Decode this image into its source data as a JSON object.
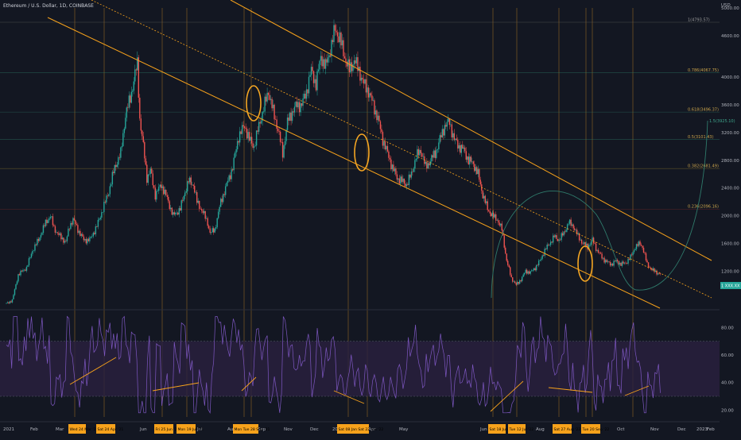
{
  "header": {
    "title": "Ethereum / U.S. Dollar, 1D, COINBASE",
    "currency": "USD"
  },
  "colors": {
    "bg": "#131722",
    "up": "#26a69a",
    "down": "#ef5350",
    "channel": "#f7a21b",
    "rsi": "#7e57c2",
    "rsi_band": "#2a2140",
    "fib": "#4f5b2f",
    "marker": "#f5a623",
    "tag_bg": "#f7a21b",
    "arc": "#2f7a6b",
    "price_tag": "#26a69a"
  },
  "chart_data": {
    "type": "candlestick",
    "x_labels": [
      "2021",
      "Feb",
      "Mar",
      "Jun",
      "Jul",
      "Aug",
      "Sep",
      "Nov",
      "Dec",
      "2022",
      "Apr",
      "May",
      "Jun",
      "Aug",
      "Sep",
      "Oct",
      "Nov",
      "Dec",
      "2023",
      "Feb"
    ],
    "y_axis": {
      "unit": "USD",
      "tick_labels": [
        "5000.00",
        "4600.00",
        "4000.00",
        "3600.00",
        "3200.00",
        "2800.00",
        "2400.00",
        "2000.00",
        "1600.00",
        "1200.00",
        "1000.00"
      ],
      "ylim": [
        700,
        5000
      ]
    },
    "price_path": [
      [
        0,
        730
      ],
      [
        5,
        780
      ],
      [
        10,
        1150
      ],
      [
        17,
        1250
      ],
      [
        22,
        1500
      ],
      [
        27,
        1650
      ],
      [
        30,
        1780
      ],
      [
        33,
        1900
      ],
      [
        37,
        2000
      ],
      [
        40,
        1820
      ],
      [
        45,
        1700
      ],
      [
        50,
        1620
      ],
      [
        53,
        1850
      ],
      [
        56,
        1950
      ],
      [
        60,
        1800
      ],
      [
        65,
        1650
      ],
      [
        70,
        1650
      ],
      [
        76,
        1850
      ],
      [
        80,
        2050
      ],
      [
        86,
        2350
      ],
      [
        91,
        2700
      ],
      [
        96,
        2900
      ],
      [
        100,
        3450
      ],
      [
        104,
        3700
      ],
      [
        107,
        3950
      ],
      [
        110,
        4200
      ],
      [
        112,
        3400
      ],
      [
        115,
        3000
      ],
      [
        118,
        2550
      ],
      [
        121,
        2650
      ],
      [
        125,
        2300
      ],
      [
        130,
        2450
      ],
      [
        135,
        2250
      ],
      [
        140,
        2000
      ],
      [
        146,
        2100
      ],
      [
        150,
        2350
      ],
      [
        153,
        2500
      ],
      [
        157,
        2450
      ],
      [
        160,
        2200
      ],
      [
        165,
        2050
      ],
      [
        169,
        1900
      ],
      [
        171,
        1750
      ],
      [
        175,
        1800
      ],
      [
        180,
        2200
      ],
      [
        185,
        2450
      ],
      [
        190,
        2700
      ],
      [
        195,
        3150
      ],
      [
        200,
        3300
      ],
      [
        204,
        3100
      ],
      [
        208,
        3000
      ],
      [
        212,
        3300
      ],
      [
        216,
        3550
      ],
      [
        220,
        3800
      ],
      [
        224,
        3500
      ],
      [
        228,
        3250
      ],
      [
        232,
        2900
      ],
      [
        236,
        3350
      ],
      [
        240,
        3500
      ],
      [
        244,
        3600
      ],
      [
        248,
        3600
      ],
      [
        252,
        3800
      ],
      [
        256,
        4100
      ],
      [
        260,
        3900
      ],
      [
        264,
        4300
      ],
      [
        268,
        4150
      ],
      [
        272,
        4400
      ],
      [
        276,
        4700
      ],
      [
        280,
        4550
      ],
      [
        284,
        4300
      ],
      [
        288,
        4100
      ],
      [
        292,
        4250
      ],
      [
        296,
        4100
      ],
      [
        300,
        3900
      ],
      [
        304,
        3800
      ],
      [
        308,
        3600
      ],
      [
        312,
        3400
      ],
      [
        316,
        3100
      ],
      [
        320,
        2900
      ],
      [
        324,
        2700
      ],
      [
        328,
        2550
      ],
      [
        332,
        2500
      ],
      [
        336,
        2450
      ],
      [
        340,
        2600
      ],
      [
        344,
        2850
      ],
      [
        348,
        2950
      ],
      [
        352,
        2700
      ],
      [
        356,
        2800
      ],
      [
        360,
        2900
      ],
      [
        364,
        3100
      ],
      [
        368,
        3300
      ],
      [
        372,
        3350
      ],
      [
        376,
        3100
      ],
      [
        380,
        3000
      ],
      [
        384,
        2950
      ],
      [
        388,
        2800
      ],
      [
        392,
        2750
      ],
      [
        396,
        2600
      ],
      [
        400,
        2300
      ],
      [
        404,
        2100
      ],
      [
        408,
        2000
      ],
      [
        412,
        1950
      ],
      [
        416,
        1800
      ],
      [
        420,
        1350
      ],
      [
        424,
        1100
      ],
      [
        428,
        1000
      ],
      [
        432,
        1080
      ],
      [
        436,
        1200
      ],
      [
        440,
        1180
      ],
      [
        444,
        1250
      ],
      [
        448,
        1350
      ],
      [
        452,
        1500
      ],
      [
        456,
        1600
      ],
      [
        460,
        1700
      ],
      [
        464,
        1650
      ],
      [
        468,
        1750
      ],
      [
        472,
        1900
      ],
      [
        476,
        1850
      ],
      [
        480,
        1700
      ],
      [
        484,
        1600
      ],
      [
        488,
        1550
      ],
      [
        492,
        1650
      ],
      [
        496,
        1500
      ],
      [
        500,
        1400
      ],
      [
        504,
        1330
      ],
      [
        508,
        1300
      ],
      [
        512,
        1350
      ],
      [
        516,
        1300
      ],
      [
        520,
        1320
      ],
      [
        524,
        1400
      ],
      [
        528,
        1550
      ],
      [
        532,
        1600
      ],
      [
        534,
        1550
      ],
      [
        538,
        1300
      ],
      [
        542,
        1220
      ],
      [
        546,
        1180
      ],
      [
        550,
        1150
      ]
    ],
    "fib_labels": [
      "1(4793.57)",
      "0.786(4067.75)",
      "0.618(3496.37)",
      "0.5(3101.43)",
      "0.382(2681.49)",
      "0.236(2096.16)"
    ],
    "target_label": "1.5(3925.10)",
    "current_price_tag": "1 XXX.XX",
    "rsi": {
      "tick_labels": [
        "80.00",
        "60.00",
        "40.00",
        "20.00"
      ],
      "band": [
        30,
        70
      ],
      "ylim": [
        15,
        90
      ]
    },
    "event_tags": [
      "Wed 24 Mar '21",
      "Sat 24 Apr '21",
      "Fri 25 Jun '21",
      "Mon 19 Jul '21",
      "Mon  Tue 28 Sep '21",
      "Sat 08 Jan  Sat 22 Jan '22",
      "Sat 18 Jun '22",
      "Tue 12 Jul '22",
      "Sat 27 Aug '22",
      "Tue 20 Sep '22"
    ],
    "grid": false,
    "legend": "none"
  }
}
